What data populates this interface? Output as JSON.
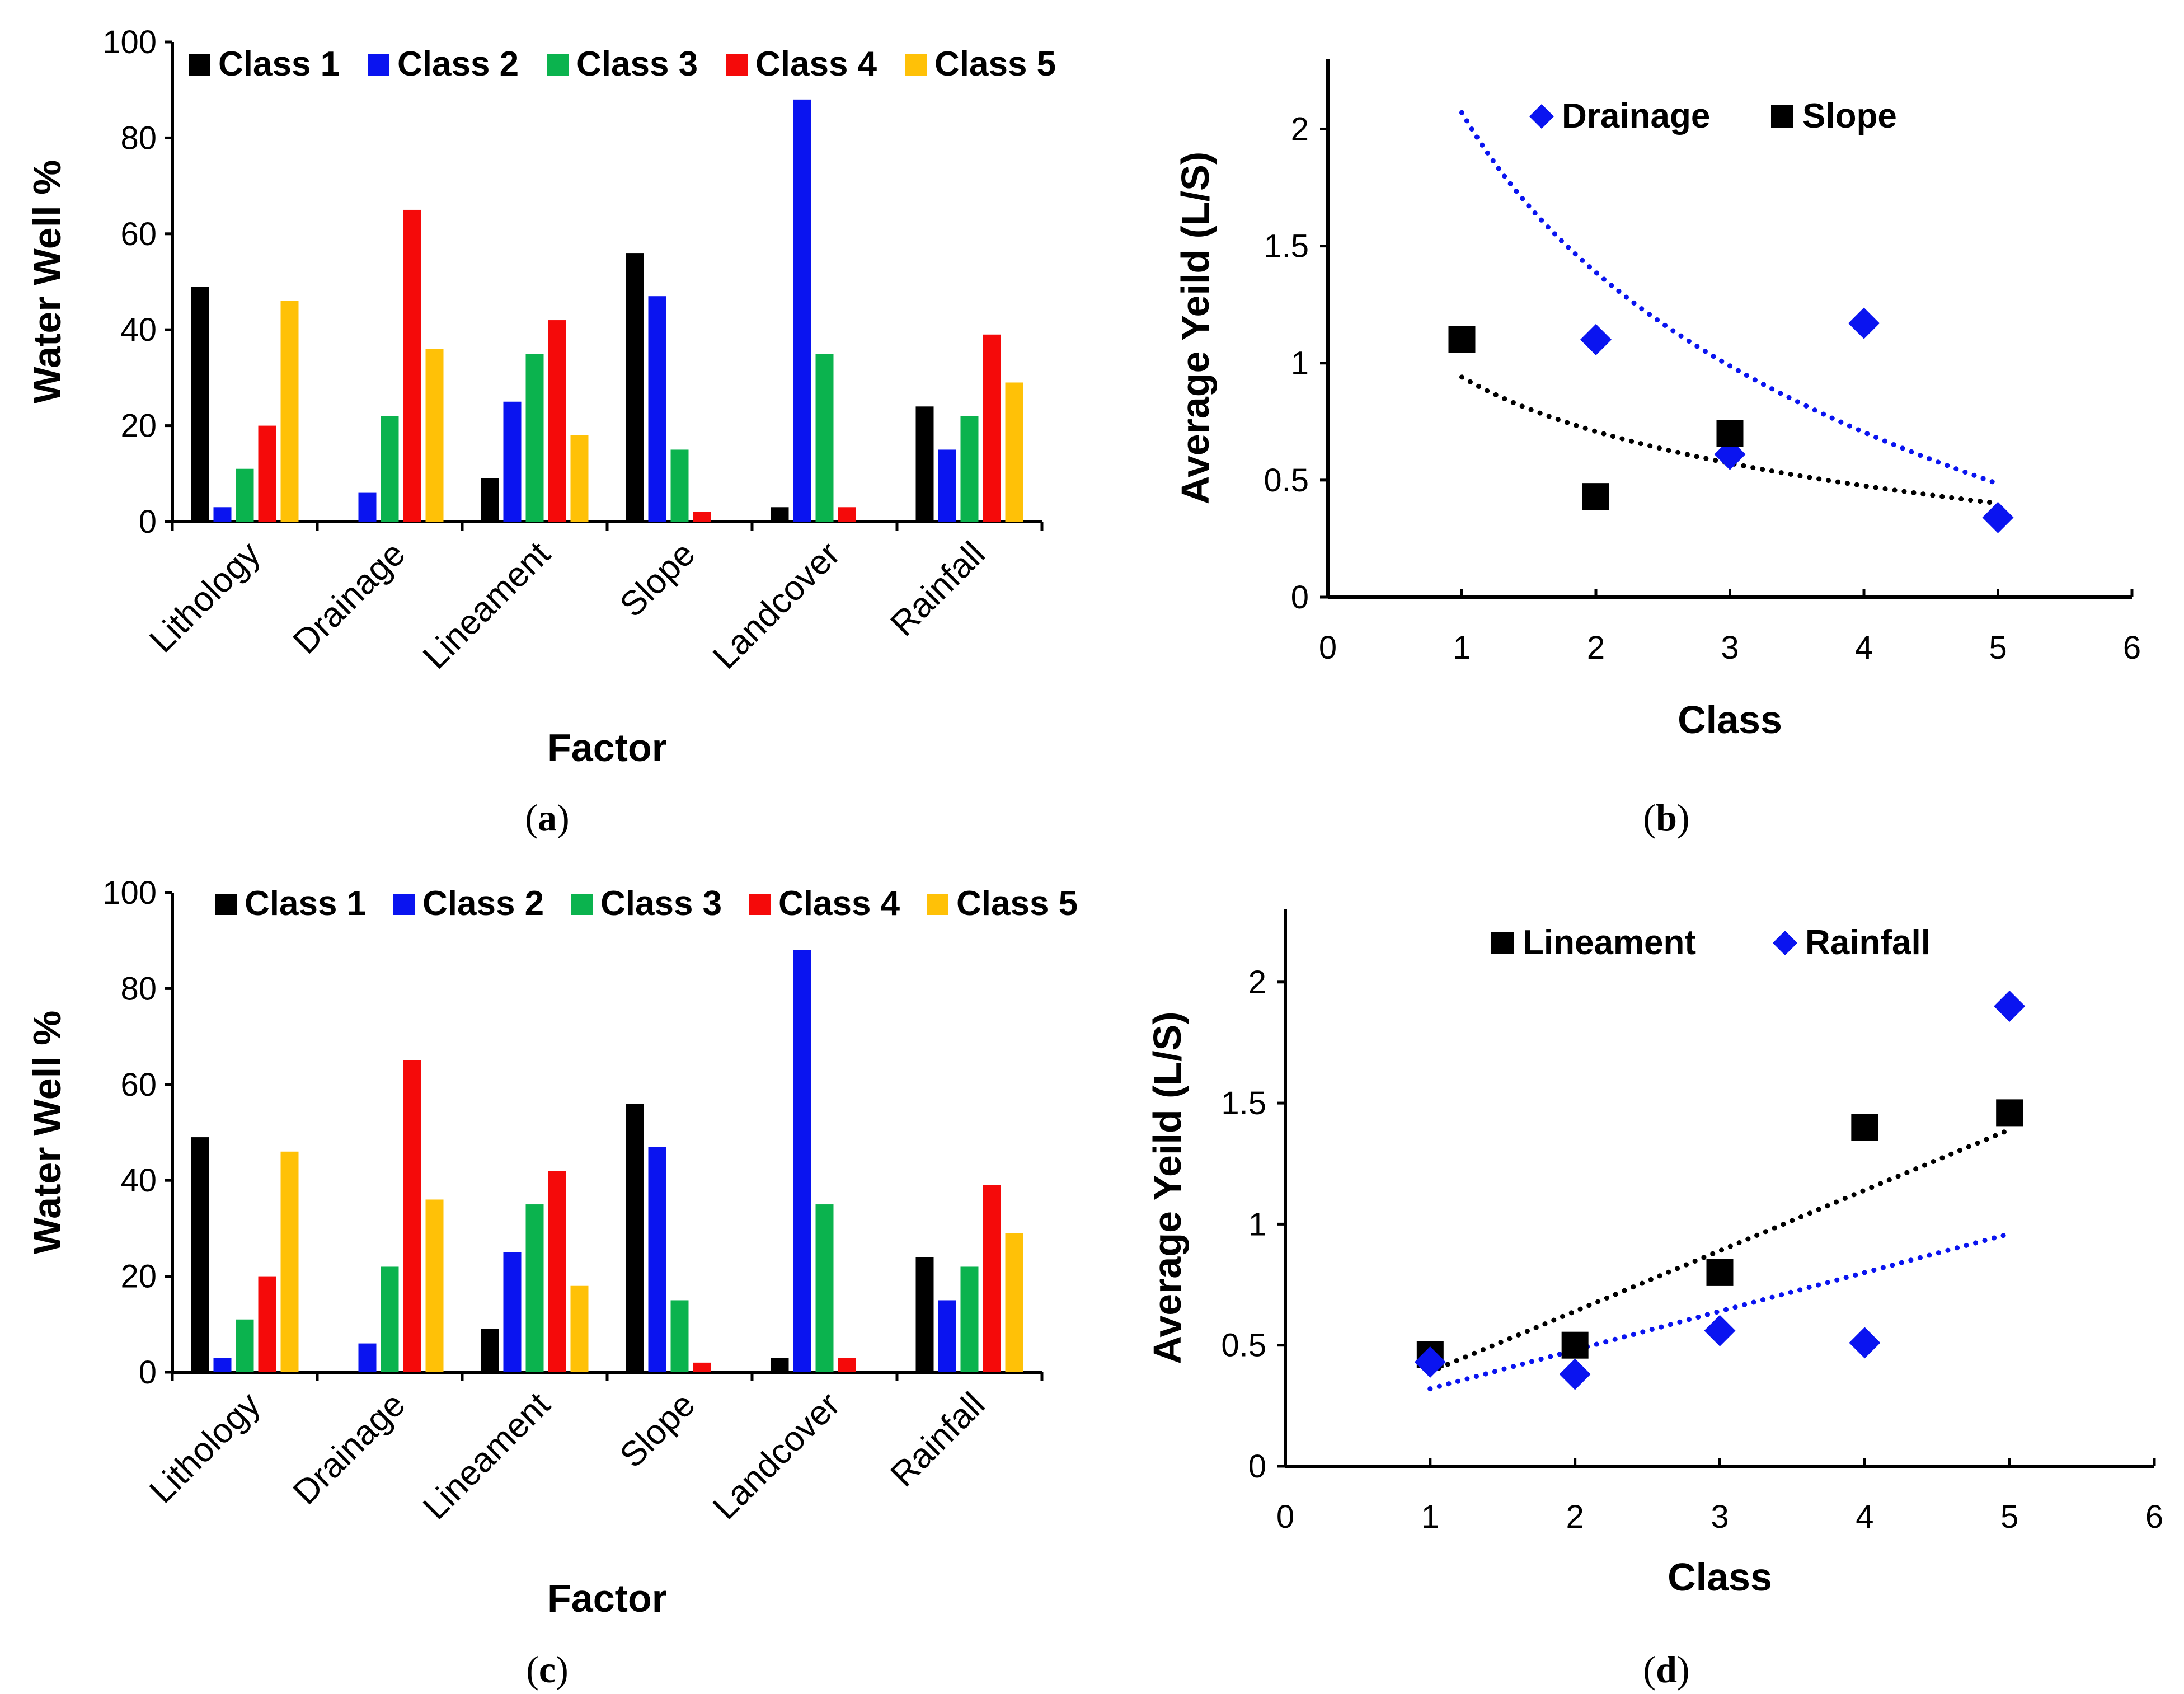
{
  "chart_data": [
    {
      "panel": "a",
      "type": "bar",
      "xlabel": "Factor",
      "ylabel": "Water Well %",
      "ylim": [
        0,
        100
      ],
      "yticks": [
        0,
        20,
        40,
        60,
        80,
        100
      ],
      "categories": [
        "Lithology",
        "Drainage",
        "Lineament",
        "Slope",
        "Landcover",
        "Rainfall"
      ],
      "series": [
        {
          "name": "Class 1",
          "color": "#000000",
          "values": [
            49,
            0,
            9,
            56,
            3,
            24
          ]
        },
        {
          "name": "Class 2",
          "color": "#0a14f0",
          "values": [
            3,
            6,
            25,
            47,
            88,
            15
          ]
        },
        {
          "name": "Class 3",
          "color": "#0bb34e",
          "values": [
            11,
            22,
            35,
            15,
            35,
            22
          ]
        },
        {
          "name": "Class 4",
          "color": "#f50a0a",
          "values": [
            20,
            65,
            42,
            2,
            3,
            39
          ]
        },
        {
          "name": "Class 5",
          "color": "#ffc107",
          "values": [
            46,
            36,
            18,
            0,
            0,
            29
          ]
        }
      ],
      "legend_position": "top"
    },
    {
      "panel": "b",
      "type": "scatter",
      "xlabel": "Class",
      "ylabel": "Average Yeild (L/S)",
      "xlim": [
        0,
        6
      ],
      "ylim": [
        0,
        2.3
      ],
      "xticks": [
        0,
        1,
        2,
        3,
        4,
        5,
        6
      ],
      "yticks": [
        "0",
        "0.5",
        "1",
        "1.5",
        "2"
      ],
      "series": [
        {
          "name": "Drainage",
          "marker": "diamond",
          "color": "#0a14f0",
          "x": [
            2,
            3,
            4,
            5
          ],
          "y": [
            1.1,
            0.61,
            1.17,
            0.34
          ],
          "trend": {
            "type": "logarithmic",
            "a": 2.07,
            "b": -0.985,
            "x_range": [
              1,
              5
            ]
          }
        },
        {
          "name": "Slope",
          "marker": "square",
          "color": "#000000",
          "x": [
            1,
            2,
            3
          ],
          "y": [
            1.1,
            0.43,
            0.7
          ],
          "trend": {
            "type": "logarithmic",
            "a": 0.94,
            "b": -0.335,
            "x_range": [
              1,
              5
            ]
          }
        }
      ],
      "legend_position": "top"
    },
    {
      "panel": "c",
      "type": "bar",
      "xlabel": "Factor",
      "ylabel": "Water Well %",
      "ylim": [
        0,
        100
      ],
      "yticks": [
        0,
        20,
        40,
        60,
        80,
        100
      ],
      "categories": [
        "Lithology",
        "Drainage",
        "Lineament",
        "Slope",
        "Landcover",
        "Rainfall"
      ],
      "series": [
        {
          "name": "Class 1",
          "color": "#000000",
          "values": [
            49,
            0,
            9,
            56,
            3,
            24
          ]
        },
        {
          "name": "Class 2",
          "color": "#0a14f0",
          "values": [
            3,
            6,
            25,
            47,
            88,
            15
          ]
        },
        {
          "name": "Class 3",
          "color": "#0bb34e",
          "values": [
            11,
            22,
            35,
            15,
            35,
            22
          ]
        },
        {
          "name": "Class 4",
          "color": "#f50a0a",
          "values": [
            20,
            65,
            42,
            2,
            3,
            39
          ]
        },
        {
          "name": "Class 5",
          "color": "#ffc107",
          "values": [
            46,
            36,
            18,
            0,
            0,
            29
          ]
        }
      ],
      "legend_position": "top"
    },
    {
      "panel": "d",
      "type": "scatter",
      "xlabel": "Class",
      "ylabel": "Average Yeild (L/S)",
      "xlim": [
        0,
        6
      ],
      "ylim": [
        0,
        2.3
      ],
      "xticks": [
        0,
        1,
        2,
        3,
        4,
        5,
        6
      ],
      "yticks": [
        "0",
        "0.5",
        "1",
        "1.5",
        "2"
      ],
      "series": [
        {
          "name": "Lineament",
          "marker": "square",
          "color": "#000000",
          "x": [
            1,
            2,
            3,
            4,
            5
          ],
          "y": [
            0.46,
            0.5,
            0.8,
            1.4,
            1.46
          ],
          "trend": {
            "type": "linear",
            "slope": 0.25,
            "intercept": 0.14,
            "x_range": [
              1,
              5
            ]
          }
        },
        {
          "name": "Rainfall",
          "marker": "diamond",
          "color": "#0a14f0",
          "x": [
            1,
            2,
            3,
            4,
            5
          ],
          "y": [
            0.43,
            0.38,
            0.56,
            0.51,
            1.9
          ],
          "trend": {
            "type": "linear",
            "slope": 0.16,
            "intercept": 0.16,
            "x_range": [
              1,
              5
            ]
          }
        }
      ],
      "legend_position": "top"
    }
  ],
  "panel_labels": [
    "a",
    "b",
    "c",
    "d"
  ]
}
